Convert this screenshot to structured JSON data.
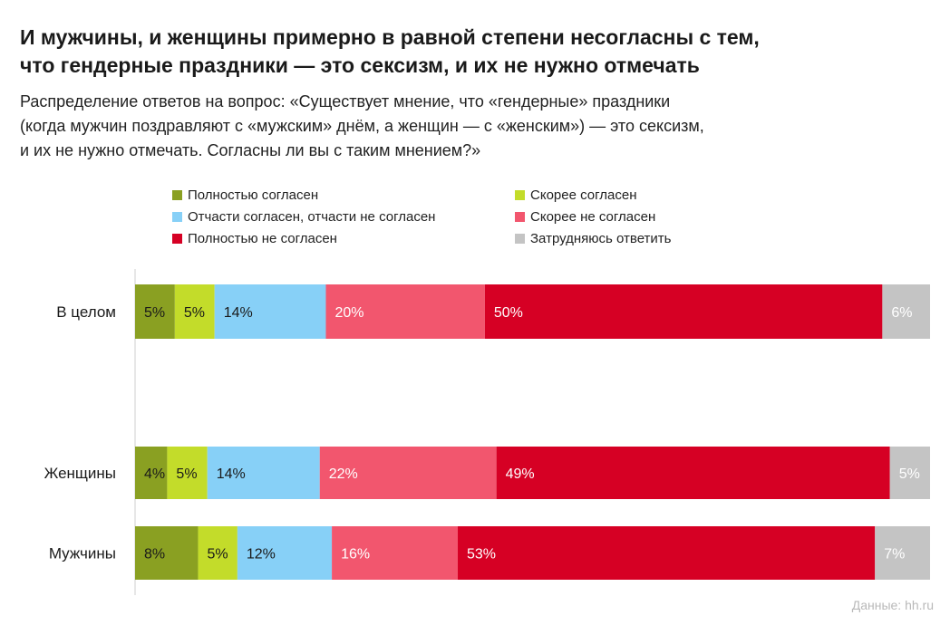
{
  "title": [
    "И мужчины, и женщины примерно в равной степени несогласны с тем,",
    "что гендерные праздники — это сексизм, и их не нужно отмечать"
  ],
  "subtitle": [
    "Распределение ответов на вопрос: «Существует мнение, что «гендерные» праздники",
    "(когда мужчин поздравляют с «мужским» днём, а женщин — с «женским») — это сексизм,",
    "и их не нужно отмечать.  Согласны ли вы с таким мнением?»"
  ],
  "source": "Данные: hh.ru",
  "colors": {
    "full_agree": "#8aa022",
    "rather_agree": "#c3dc2a",
    "partly": "#87d0f7",
    "rather_disagree": "#f2566e",
    "full_disagree": "#d60024",
    "hard_to_say": "#c4c4c4"
  },
  "chart_data": {
    "type": "bar",
    "orientation": "horizontal",
    "stacked": true,
    "normalized": "100%",
    "categories": [
      "В целом",
      "Женщины",
      "Мужчины"
    ],
    "series": [
      {
        "key": "full_agree",
        "name": "Полностью согласен",
        "values": [
          5,
          4,
          8
        ],
        "labels": [
          "5%",
          "4%",
          "8%"
        ]
      },
      {
        "key": "rather_agree",
        "name": "Скорее согласен",
        "values": [
          5,
          5,
          5
        ],
        "labels": [
          "5%",
          "5%",
          "5%"
        ]
      },
      {
        "key": "partly",
        "name": "Отчасти согласен, отчасти не согласен",
        "values": [
          14,
          14,
          12
        ],
        "labels": [
          "14%",
          "14%",
          "12%"
        ]
      },
      {
        "key": "rather_disagree",
        "name": "Скорее не согласен",
        "values": [
          20,
          22,
          16
        ],
        "labels": [
          "20%",
          "22%",
          "16%"
        ]
      },
      {
        "key": "full_disagree",
        "name": "Полностью не согласен",
        "values": [
          50,
          49,
          53
        ],
        "labels": [
          "50%",
          "49%",
          "53%"
        ]
      },
      {
        "key": "hard_to_say",
        "name": "Затрудняюсь ответить",
        "values": [
          6,
          5,
          7
        ],
        "labels": [
          "6%",
          "5%",
          "7%"
        ]
      }
    ],
    "legend_position": "top",
    "grid": false
  }
}
